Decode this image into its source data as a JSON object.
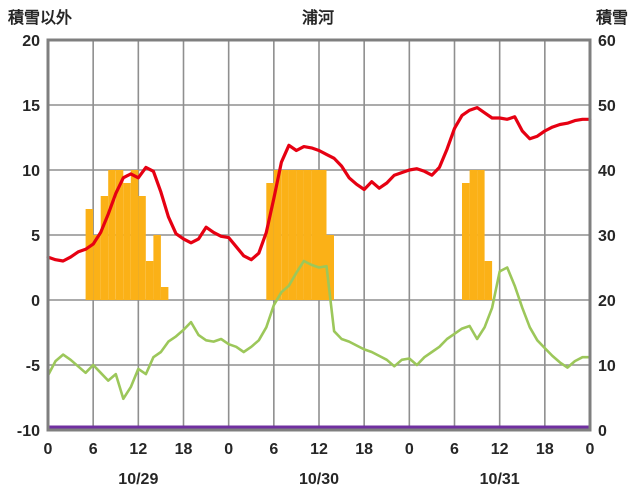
{
  "header": {
    "left_axis_title": "積雪以外",
    "title": "浦河",
    "right_axis_title": "積雪"
  },
  "chart_data": {
    "type": "line",
    "title": "浦河",
    "grid_color": "#8f8f8f",
    "border_color": "#7f7f7f",
    "text_color": "#262626",
    "background": "#ffffff",
    "left_axis": {
      "label": "積雪以外",
      "min": -10,
      "max": 20,
      "ticks": [
        20,
        15,
        10,
        5,
        0,
        -5,
        -10
      ]
    },
    "right_axis": {
      "label": "積雪",
      "min": 0,
      "max": 60,
      "ticks": [
        60,
        50,
        40,
        30,
        20,
        10,
        0
      ]
    },
    "x_axis": {
      "total_hours": 72,
      "tick_interval_hours": 6,
      "tick_labels": [
        "0",
        "6",
        "12",
        "18",
        "0",
        "6",
        "12",
        "18",
        "0",
        "6",
        "12",
        "18",
        "0"
      ],
      "days": [
        "10/29",
        "10/30",
        "10/31"
      ]
    },
    "series": [
      {
        "name": "sunshine-bars",
        "type": "bar",
        "axis": "left",
        "color": "#fbb117",
        "values": [
          0,
          0,
          0,
          0,
          0,
          7,
          5,
          8,
          10,
          10,
          9,
          10,
          8,
          3,
          5,
          1,
          0,
          0,
          0,
          0,
          0,
          0,
          0,
          0,
          0,
          0,
          0,
          0,
          0,
          9,
          10,
          10,
          10,
          10,
          10,
          10,
          10,
          5,
          0,
          0,
          0,
          0,
          0,
          0,
          0,
          0,
          0,
          0,
          0,
          0,
          0,
          0,
          0,
          0,
          0,
          9,
          10,
          10,
          3,
          0,
          0,
          0,
          0,
          0,
          0,
          0,
          0,
          0,
          0,
          0,
          0,
          0
        ]
      },
      {
        "name": "temperature-red",
        "type": "line",
        "axis": "left",
        "color": "#e60012",
        "width": 3.2,
        "values": [
          3.3,
          3.1,
          3.0,
          3.3,
          3.7,
          3.9,
          4.3,
          5.2,
          6.6,
          8.2,
          9.4,
          9.7,
          9.4,
          10.2,
          9.9,
          8.3,
          6.4,
          5.1,
          4.7,
          4.4,
          4.7,
          5.6,
          5.2,
          4.9,
          4.8,
          4.1,
          3.4,
          3.1,
          3.6,
          5.2,
          7.8,
          10.6,
          11.9,
          11.5,
          11.8,
          11.7,
          11.5,
          11.2,
          10.9,
          10.3,
          9.4,
          8.9,
          8.5,
          9.1,
          8.6,
          9.0,
          9.6,
          9.8,
          10.0,
          10.1,
          9.9,
          9.6,
          10.2,
          11.6,
          13.2,
          14.2,
          14.6,
          14.8,
          14.4,
          14.0,
          14.0,
          13.9,
          14.1,
          13.0,
          12.4,
          12.6,
          13.0,
          13.3,
          13.5,
          13.6,
          13.8,
          13.9
        ]
      },
      {
        "name": "temperature-green",
        "type": "line",
        "axis": "left",
        "color": "#9cc75a",
        "width": 2.6,
        "values": [
          -5.8,
          -4.7,
          -4.2,
          -4.6,
          -5.1,
          -5.6,
          -5.0,
          -5.6,
          -6.2,
          -5.7,
          -7.6,
          -6.7,
          -5.3,
          -5.7,
          -4.4,
          -4.0,
          -3.2,
          -2.8,
          -2.3,
          -1.7,
          -2.7,
          -3.1,
          -3.2,
          -3.0,
          -3.4,
          -3.6,
          -4.0,
          -3.6,
          -3.1,
          -2.1,
          -0.4,
          0.6,
          1.1,
          2.1,
          3.0,
          2.7,
          2.5,
          2.6,
          -2.4,
          -3.0,
          -3.2,
          -3.5,
          -3.8,
          -4.0,
          -4.3,
          -4.6,
          -5.1,
          -4.6,
          -4.5,
          -5.0,
          -4.4,
          -4.0,
          -3.6,
          -3.0,
          -2.6,
          -2.2,
          -2.0,
          -3.0,
          -2.1,
          -0.6,
          2.2,
          2.5,
          1.1,
          -0.6,
          -2.1,
          -3.1,
          -3.7,
          -4.3,
          -4.8,
          -5.2,
          -4.7,
          -4.4
        ]
      },
      {
        "name": "snow-depth-purple",
        "type": "line",
        "axis": "right",
        "color": "#7030a0",
        "width": 3,
        "constant": 0
      }
    ]
  }
}
